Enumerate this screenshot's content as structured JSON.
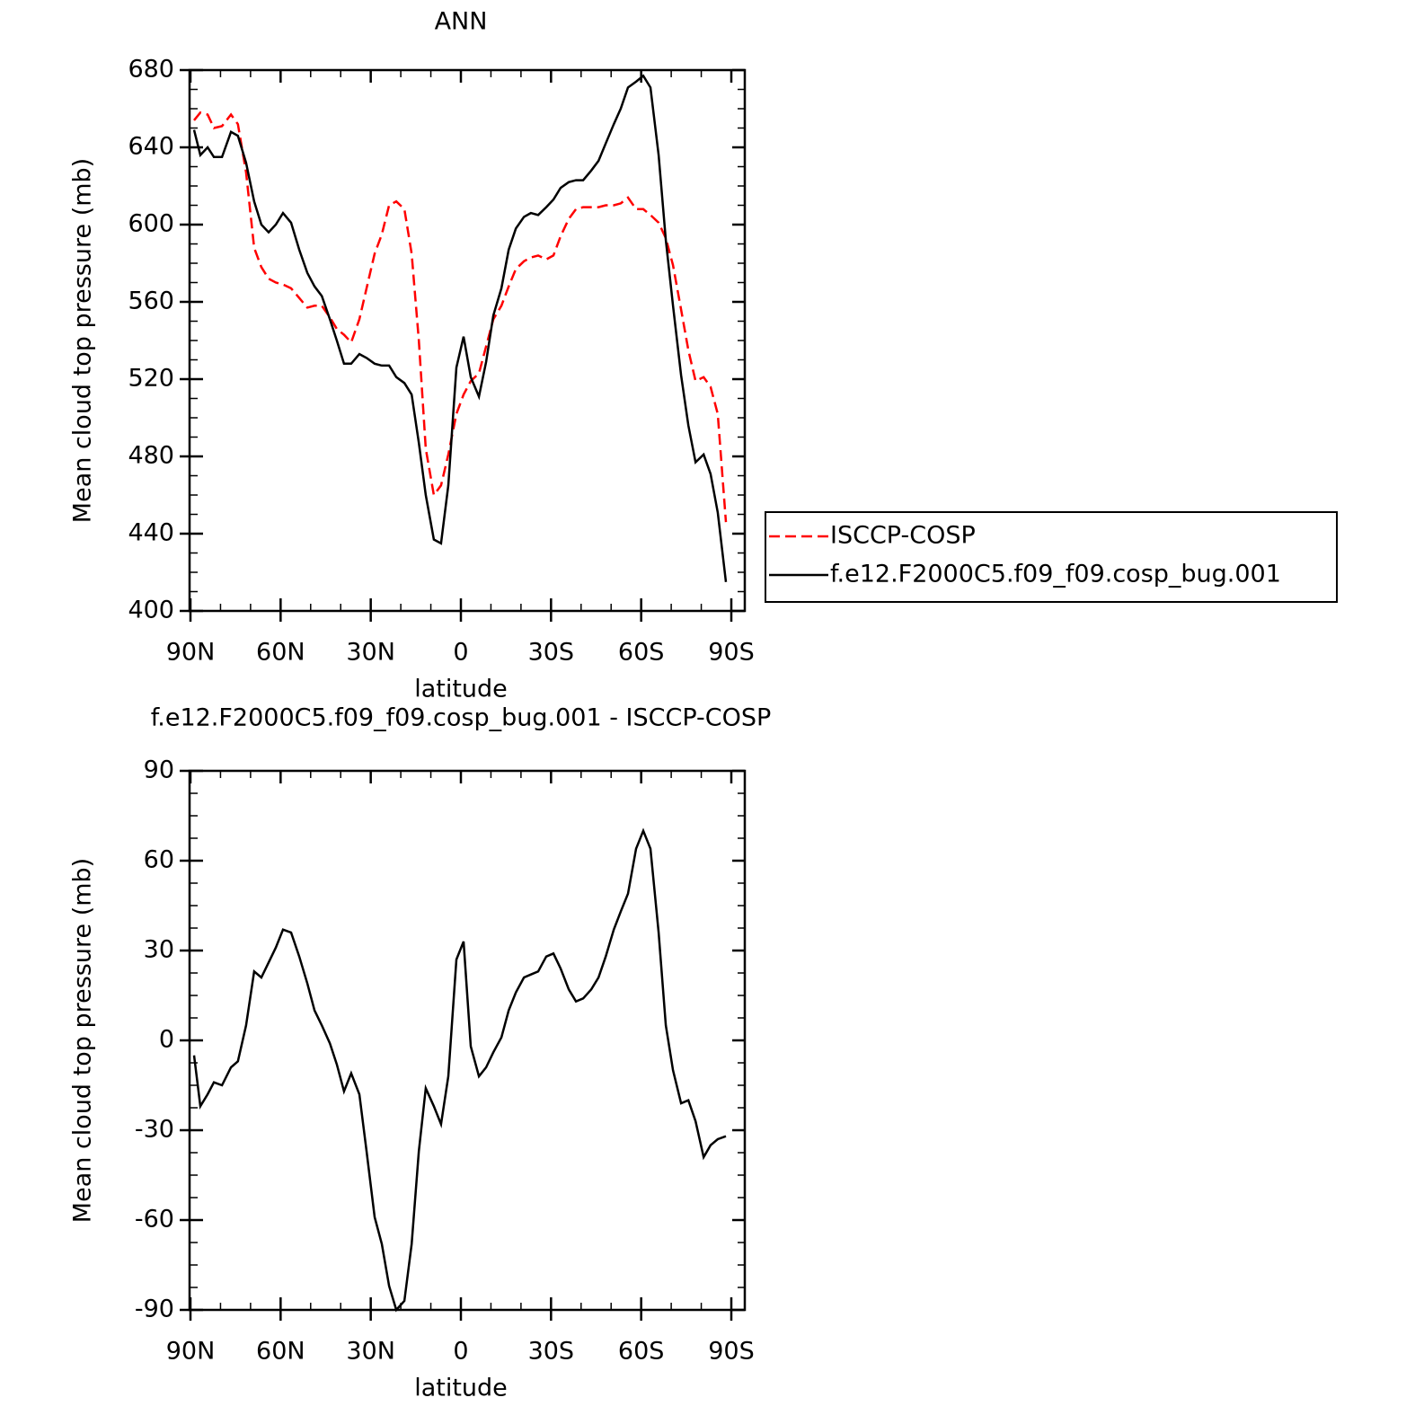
{
  "chart_data": [
    {
      "type": "line",
      "title": "ANN",
      "xlabel": "latitude",
      "ylabel": "Mean cloud top pressure (mb)",
      "xlim": [
        90,
        -90
      ],
      "xticks": [
        {
          "value": 90,
          "label": "90N"
        },
        {
          "value": 60,
          "label": "60N"
        },
        {
          "value": 30,
          "label": "30N"
        },
        0,
        {
          "value": -30,
          "label": "30S"
        },
        {
          "value": -60,
          "label": "60S"
        },
        {
          "value": -90,
          "label": "90S"
        }
      ],
      "ylim": [
        400,
        680
      ],
      "yticks": [
        400,
        440,
        480,
        520,
        560,
        600,
        640,
        680
      ],
      "legend": "outside-right",
      "x": [
        88.8,
        86.7,
        84.3,
        82.2,
        79.5,
        76.5,
        74.2,
        71.5,
        68.8,
        66.4,
        64,
        61.6,
        59.2,
        56.5,
        53.8,
        51.1,
        48.7,
        46.3,
        43.6,
        41.3,
        38.9,
        36.5,
        33.8,
        31.4,
        28.7,
        26.3,
        23.9,
        21.5,
        18.8,
        16.4,
        14,
        11.7,
        9,
        6.6,
        4.2,
        1.5,
        -0.9,
        -3.3,
        -6,
        -8.4,
        -10.8,
        -13.5,
        -15.9,
        -18.3,
        -21,
        -23.3,
        -25.7,
        -28.4,
        -30.8,
        -33.2,
        -35.9,
        -38.3,
        -40.7,
        -43.4,
        -45.8,
        -48.2,
        -50.9,
        -53.2,
        -55.6,
        -58.3,
        -60.7,
        -63.1,
        -65.8,
        -68.2,
        -70.6,
        -73.3,
        -75.7,
        -78.1,
        -80.8,
        -83.1,
        -85.5,
        -88.2
      ],
      "series": [
        {
          "name": "ISCCP-COSP",
          "color": "#ff0000",
          "dash": "dashed",
          "values": [
            654,
            658,
            657,
            650,
            651,
            657,
            652,
            627,
            588,
            578,
            572,
            570,
            569,
            567,
            562,
            557,
            558,
            558,
            552,
            546,
            543,
            539,
            551,
            567,
            585,
            595,
            610,
            612,
            608,
            585,
            540,
            484,
            460,
            465,
            481,
            502,
            512,
            519,
            523,
            537,
            551,
            558,
            568,
            577,
            581,
            583,
            584,
            582,
            584,
            594,
            603,
            608,
            609,
            609,
            609,
            610,
            610,
            611,
            614,
            608,
            608,
            605,
            601,
            593,
            579,
            556,
            535,
            519,
            521,
            516,
            502,
            446
          ]
        },
        {
          "name": "f.e12.F2000C5.f09_f09.cosp_bug.001",
          "color": "#000000",
          "dash": "solid",
          "values": [
            649,
            636,
            640,
            635,
            635,
            648,
            646,
            632,
            612,
            600,
            596,
            600,
            606,
            601,
            587,
            575,
            568,
            563,
            551,
            540,
            528,
            528,
            533,
            531,
            528,
            527,
            527,
            521,
            518,
            512,
            487,
            460,
            437,
            435,
            465,
            526,
            542,
            521,
            511,
            529,
            553,
            567,
            587,
            598,
            604,
            606,
            605,
            609,
            613,
            619,
            622,
            623,
            623,
            628,
            633,
            642,
            652,
            660,
            671,
            674,
            677,
            671,
            636,
            592,
            558,
            522,
            496,
            477,
            481,
            471,
            451,
            415
          ]
        }
      ]
    },
    {
      "type": "line",
      "title": "f.e12.F2000C5.f09_f09.cosp_bug.001 - ISCCP-COSP",
      "xlabel": "latitude",
      "ylabel": "Mean cloud top pressure (mb)",
      "xlim": [
        90,
        -90
      ],
      "xticks": [
        {
          "value": 90,
          "label": "90N"
        },
        {
          "value": 60,
          "label": "60N"
        },
        {
          "value": 30,
          "label": "30N"
        },
        0,
        {
          "value": -30,
          "label": "30S"
        },
        {
          "value": -60,
          "label": "60S"
        },
        {
          "value": -90,
          "label": "90S"
        }
      ],
      "ylim": [
        -90,
        90
      ],
      "yticks": [
        -90,
        -60,
        -30,
        0,
        30,
        60,
        90
      ],
      "x": [
        88.8,
        86.7,
        84.3,
        82.2,
        79.5,
        76.5,
        74.2,
        71.5,
        68.8,
        66.4,
        64,
        61.6,
        59.2,
        56.5,
        53.8,
        51.1,
        48.7,
        46.3,
        43.6,
        41.3,
        38.9,
        36.5,
        33.8,
        31.4,
        28.7,
        26.3,
        23.9,
        21.5,
        18.8,
        16.4,
        14,
        11.7,
        9,
        6.6,
        4.2,
        1.5,
        -0.9,
        -3.3,
        -6,
        -8.4,
        -10.8,
        -13.5,
        -15.9,
        -18.3,
        -21,
        -23.3,
        -25.7,
        -28.4,
        -30.8,
        -33.2,
        -35.9,
        -38.3,
        -40.7,
        -43.4,
        -45.8,
        -48.2,
        -50.9,
        -53.2,
        -55.6,
        -58.3,
        -60.7,
        -63.1,
        -65.8,
        -68.2,
        -70.6,
        -73.3,
        -75.7,
        -78.1,
        -80.8,
        -83.1,
        -85.5,
        -88.2
      ],
      "series": [
        {
          "color": "#000000",
          "dash": "solid",
          "values": [
            -5,
            -22,
            -18,
            -14,
            -15,
            -9,
            -7,
            5,
            23,
            21,
            26,
            31,
            37,
            36,
            28,
            19,
            10,
            5,
            -1,
            -8,
            -17,
            -11,
            -18,
            -37,
            -59,
            -68,
            -82,
            -90,
            -87,
            -68,
            -37,
            -16,
            -22,
            -28,
            -12,
            27,
            33,
            -2,
            -12,
            -9,
            -4,
            1,
            10,
            16,
            21,
            22,
            23,
            28,
            29,
            24,
            17,
            13,
            14,
            17,
            21,
            28,
            37,
            43,
            49,
            64,
            70,
            64,
            36,
            5,
            -10,
            -21,
            -20,
            -27,
            -39,
            -35,
            -33,
            -32
          ]
        }
      ]
    }
  ]
}
